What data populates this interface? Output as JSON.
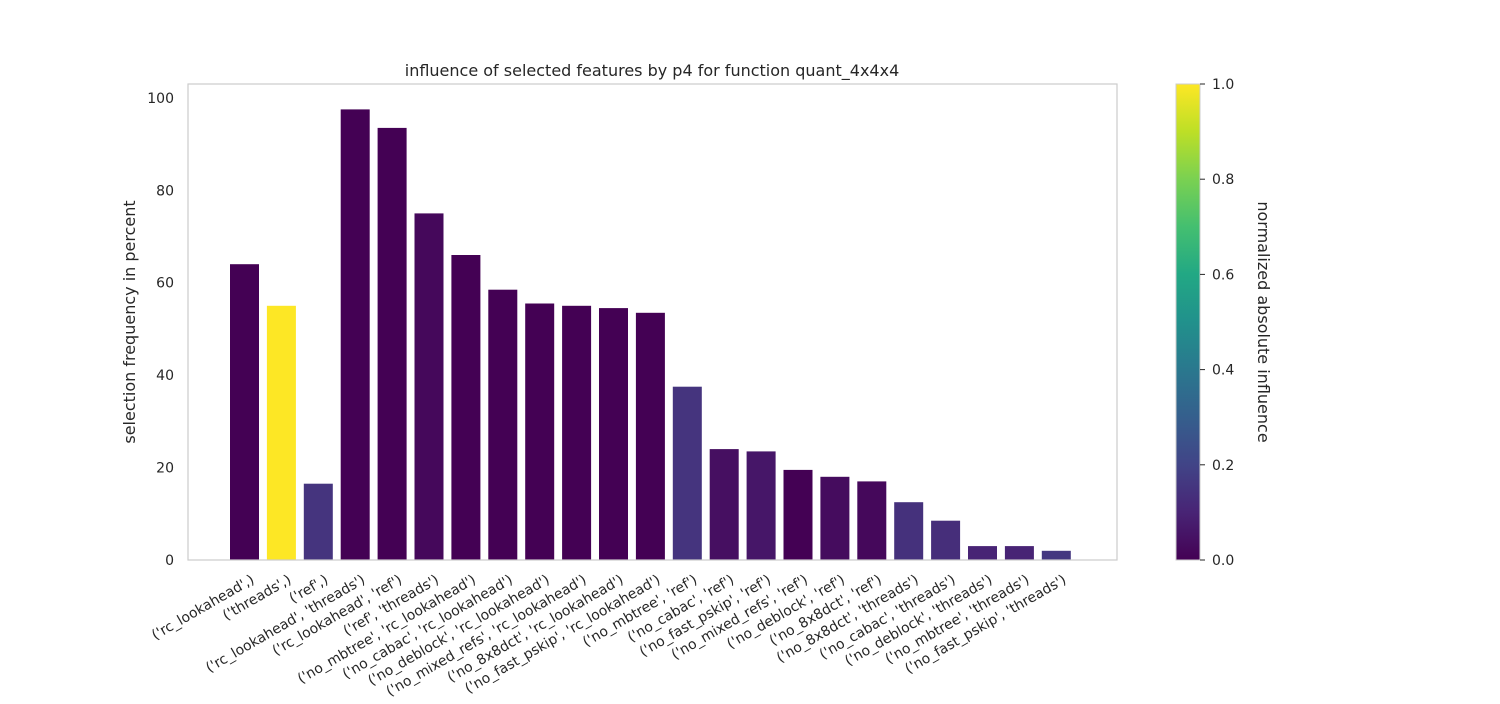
{
  "chart_data": {
    "type": "bar",
    "title": "influence of selected features by p4 for function quant_4x4x4",
    "xlabel": "",
    "ylabel": "selection frequency in percent",
    "ylim": [
      0,
      103
    ],
    "yticks": [
      0,
      20,
      40,
      60,
      80,
      100
    ],
    "grid": false,
    "categories": [
      "('rc_lookahead',)",
      "('threads',)",
      "('ref',)",
      "('rc_lookahead', 'threads')",
      "('rc_lookahead', 'ref')",
      "('ref', 'threads')",
      "('no_mbtree', 'rc_lookahead')",
      "('no_cabac', 'rc_lookahead')",
      "('no_deblock', 'rc_lookahead')",
      "('no_mixed_refs', 'rc_lookahead')",
      "('no_8x8dct', 'rc_lookahead')",
      "('no_fast_pskip', 'rc_lookahead')",
      "('no_mbtree', 'ref')",
      "('no_cabac', 'ref')",
      "('no_fast_pskip', 'ref')",
      "('no_mixed_refs', 'ref')",
      "('no_deblock', 'ref')",
      "('no_8x8dct', 'ref')",
      "('no_8x8dct', 'threads')",
      "('no_cabac', 'threads')",
      "('no_deblock', 'threads')",
      "('no_mbtree', 'threads')",
      "('no_fast_pskip', 'threads')"
    ],
    "values": [
      64,
      55,
      16.5,
      97.5,
      93.5,
      75,
      66,
      58.5,
      55.5,
      55,
      54.5,
      53.5,
      37.5,
      24,
      23.5,
      19.5,
      18,
      17,
      12.5,
      8.5,
      3,
      3,
      2
    ],
    "influence": [
      0.0,
      1.0,
      0.15,
      0.0,
      0.0,
      0.02,
      0.0,
      0.0,
      0.0,
      0.0,
      0.0,
      0.0,
      0.15,
      0.04,
      0.06,
      0.0,
      0.03,
      0.02,
      0.14,
      0.13,
      0.1,
      0.1,
      0.16
    ],
    "colorbar": {
      "label": "normalized absolute influence",
      "range": [
        0.0,
        1.0
      ],
      "ticks": [
        "0.0",
        "0.2",
        "0.4",
        "0.6",
        "0.8",
        "1.0"
      ],
      "colormap": "viridis"
    }
  }
}
